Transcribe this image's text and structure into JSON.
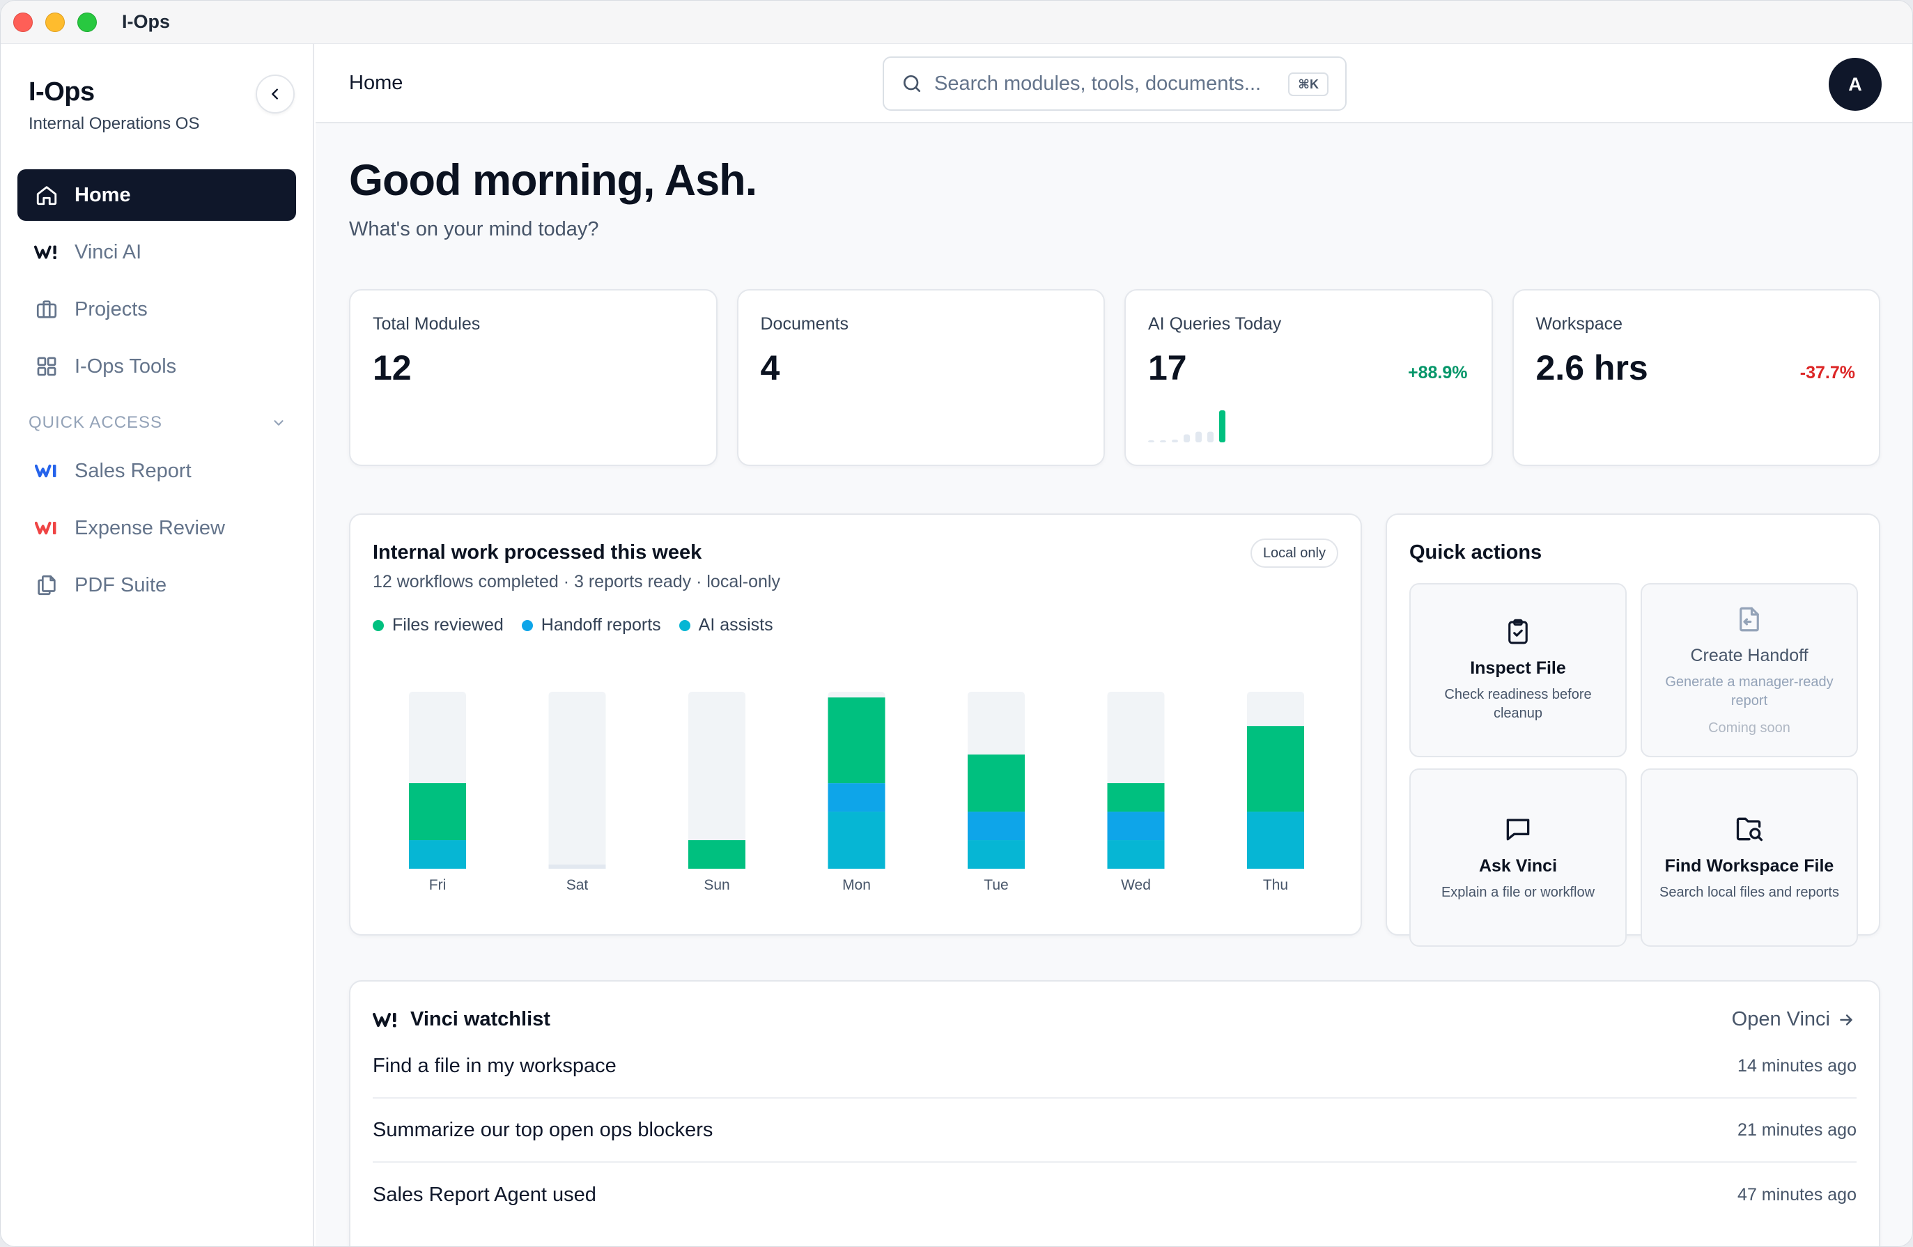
{
  "window": {
    "title": "I-Ops"
  },
  "sidebar": {
    "brand": "I-Ops",
    "subtitle": "Internal Operations OS",
    "nav": [
      {
        "label": "Home",
        "icon": "home-icon",
        "active": true
      },
      {
        "label": "Vinci AI",
        "icon": "vinci-logo-icon",
        "active": false
      },
      {
        "label": "Projects",
        "icon": "briefcase-icon",
        "active": false
      },
      {
        "label": "I-Ops Tools",
        "icon": "grid-icon",
        "active": false
      }
    ],
    "quick_access_label": "QUICK ACCESS",
    "quick_access": [
      {
        "label": "Sales Report",
        "icon": "sales-report-logo-icon",
        "color": "#2563eb"
      },
      {
        "label": "Expense Review",
        "icon": "expense-review-logo-icon",
        "color": "#ef4444"
      },
      {
        "label": "PDF Suite",
        "icon": "copy-document-icon",
        "color": "#64748b"
      }
    ]
  },
  "topbar": {
    "breadcrumb": "Home",
    "search_placeholder": "Search modules, tools, documents...",
    "search_shortcut": "⌘K",
    "avatar_initial": "A"
  },
  "greeting": {
    "title": "Good morning, Ash.",
    "subtitle": "What's on your mind today?"
  },
  "stats": [
    {
      "label": "Total Modules",
      "value": "12",
      "delta": ""
    },
    {
      "label": "Documents",
      "value": "4",
      "delta": ""
    },
    {
      "label": "AI Queries Today",
      "value": "17",
      "delta": "+88.9%",
      "trend": "up",
      "spark": [
        0,
        0,
        1,
        3,
        4,
        4,
        12
      ]
    },
    {
      "label": "Workspace",
      "value": "2.6 hrs",
      "delta": "-37.7%",
      "trend": "down"
    }
  ],
  "work_chart": {
    "title": "Internal work processed this week",
    "subtitle": "12 workflows completed · 3 reports ready · local-only",
    "badge": "Local only",
    "chart_data": {
      "type": "bar",
      "stacked": true,
      "categories": [
        "Fri",
        "Sat",
        "Sun",
        "Mon",
        "Tue",
        "Wed",
        "Thu"
      ],
      "series": [
        {
          "name": "AI assists",
          "color": "#06b6d4",
          "values": [
            1,
            0,
            0,
            2,
            1,
            1,
            2
          ]
        },
        {
          "name": "Handoff reports",
          "color": "#0ea5e9",
          "values": [
            0,
            0,
            0,
            1,
            1,
            1,
            0
          ]
        },
        {
          "name": "Files reviewed",
          "color": "#00c07f",
          "values": [
            2,
            0,
            1,
            3,
            2,
            1,
            3
          ]
        }
      ],
      "ylim": [
        0,
        6.2
      ]
    }
  },
  "quick_actions": {
    "title": "Quick actions",
    "items": [
      {
        "title": "Inspect File",
        "desc": "Check readiness before cleanup",
        "icon": "clipboard-check-icon",
        "disabled": false,
        "soon": ""
      },
      {
        "title": "Create Handoff",
        "desc": "Generate a manager-ready report",
        "icon": "file-export-icon",
        "disabled": true,
        "soon": "Coming soon"
      },
      {
        "title": "Ask Vinci",
        "desc": "Explain a file or workflow",
        "icon": "chat-bubble-icon",
        "disabled": false,
        "soon": ""
      },
      {
        "title": "Find Workspace File",
        "desc": "Search local files and reports",
        "icon": "folder-search-icon",
        "disabled": false,
        "soon": ""
      }
    ]
  },
  "watchlist": {
    "title": "Vinci watchlist",
    "open_label": "Open Vinci",
    "items": [
      {
        "text": "Find a file in my workspace",
        "time": "14 minutes ago"
      },
      {
        "text": "Summarize our top open ops blockers",
        "time": "21 minutes ago"
      },
      {
        "text": "Sales Report Agent used",
        "time": "47 minutes ago"
      }
    ]
  }
}
